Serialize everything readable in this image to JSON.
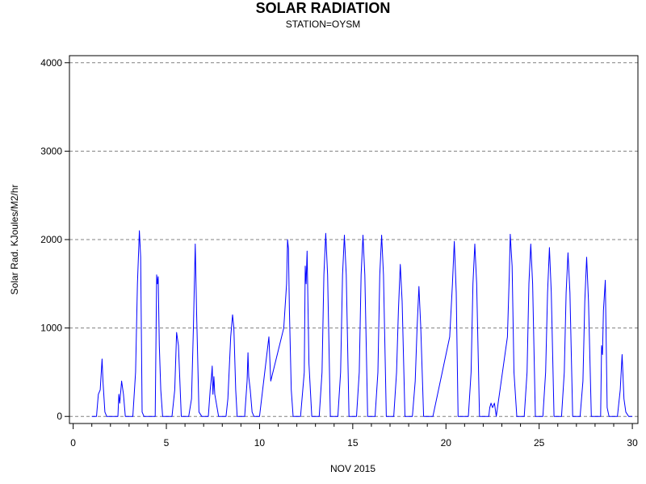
{
  "chart_data": {
    "type": "line",
    "title": "SOLAR RADIATION",
    "subtitle": "STATION=OYSM",
    "xlabel": "NOV 2015",
    "ylabel": "Solar Rad. KJoules/M2/hr",
    "xlim": [
      -0.2,
      30.3
    ],
    "ylim": [
      -80,
      4080
    ],
    "xticks": [
      0,
      5,
      10,
      15,
      20,
      25,
      30
    ],
    "yticks": [
      0,
      1000,
      2000,
      3000,
      4000
    ],
    "grid": "horizontal dashed",
    "series": [
      {
        "color": "#0000ff",
        "x": [
          1.0,
          1.25,
          1.35,
          1.45,
          1.55,
          1.6,
          1.7,
          1.8,
          2.4,
          2.45,
          2.5,
          2.6,
          2.7,
          2.8,
          3.2,
          3.35,
          3.45,
          3.55,
          3.62,
          3.7,
          3.8,
          4.4,
          4.48,
          4.52,
          4.56,
          4.62,
          4.7,
          4.8,
          5.0,
          5.3,
          5.45,
          5.55,
          5.65,
          5.8,
          6.2,
          6.35,
          6.45,
          6.55,
          6.62,
          6.75,
          6.9,
          7.25,
          7.35,
          7.42,
          7.46,
          7.5,
          7.55,
          7.6,
          7.8,
          8.2,
          8.3,
          8.45,
          8.55,
          8.62,
          8.72,
          8.8,
          9.2,
          9.33,
          9.38,
          9.42,
          9.5,
          9.6,
          9.7,
          10.0,
          10.5,
          10.6,
          11.3,
          11.45,
          11.5,
          11.55,
          11.6,
          11.7,
          11.8,
          12.2,
          12.4,
          12.45,
          12.5,
          12.55,
          12.65,
          12.8,
          13.2,
          13.35,
          13.45,
          13.55,
          13.65,
          13.8,
          14.2,
          14.35,
          14.45,
          14.55,
          14.65,
          14.8,
          15.2,
          15.35,
          15.45,
          15.55,
          15.65,
          15.8,
          16.2,
          16.35,
          16.45,
          16.55,
          16.65,
          16.8,
          17.2,
          17.35,
          17.45,
          17.55,
          17.65,
          17.8,
          18.2,
          18.35,
          18.45,
          18.55,
          18.65,
          18.8,
          19.3,
          20.2,
          20.35,
          20.45,
          20.55,
          20.65,
          20.8,
          21.2,
          21.35,
          21.45,
          21.55,
          21.65,
          21.8,
          22.2,
          22.3,
          22.35,
          22.42,
          22.5,
          22.6,
          22.7,
          23.3,
          23.4,
          23.45,
          23.55,
          23.65,
          23.8,
          24.2,
          24.35,
          24.45,
          24.55,
          24.65,
          24.8,
          25.2,
          25.35,
          25.45,
          25.55,
          25.65,
          25.8,
          26.2,
          26.35,
          26.45,
          26.55,
          26.65,
          26.8,
          27.2,
          27.35,
          27.45,
          27.55,
          27.65,
          27.8,
          28.2,
          28.3,
          28.35,
          28.4,
          28.45,
          28.55,
          28.65,
          28.75,
          29.2,
          29.35,
          29.45,
          29.55,
          29.65,
          29.8,
          30.0
        ],
        "values": [
          0,
          0,
          250,
          300,
          650,
          400,
          50,
          0,
          0,
          250,
          150,
          400,
          250,
          0,
          0,
          500,
          1500,
          2100,
          1800,
          50,
          0,
          0,
          1600,
          1500,
          1580,
          800,
          300,
          0,
          0,
          0,
          300,
          950,
          800,
          0,
          0,
          200,
          1000,
          1950,
          1200,
          50,
          0,
          0,
          300,
          450,
          570,
          250,
          450,
          250,
          0,
          0,
          200,
          900,
          1150,
          1000,
          300,
          0,
          0,
          400,
          720,
          450,
          300,
          50,
          0,
          0,
          900,
          400,
          1000,
          1500,
          2000,
          1900,
          1200,
          300,
          0,
          0,
          500,
          1700,
          1500,
          1870,
          600,
          0,
          0,
          500,
          1600,
          2070,
          1600,
          0,
          0,
          500,
          1600,
          2050,
          1600,
          0,
          0,
          500,
          1600,
          2050,
          1600,
          0,
          0,
          500,
          1600,
          2050,
          1600,
          0,
          0,
          500,
          1200,
          1720,
          1300,
          0,
          0,
          400,
          1000,
          1470,
          1000,
          0,
          0,
          900,
          1500,
          1980,
          1400,
          0,
          0,
          0,
          500,
          1500,
          1950,
          1500,
          0,
          0,
          0,
          100,
          150,
          100,
          150,
          0,
          900,
          1600,
          2060,
          1700,
          500,
          0,
          0,
          500,
          1500,
          1950,
          1500,
          0,
          0,
          500,
          1400,
          1910,
          1400,
          0,
          0,
          500,
          1400,
          1850,
          1400,
          0,
          0,
          400,
          1300,
          1800,
          1300,
          0,
          0,
          0,
          800,
          700,
          1200,
          1540,
          100,
          0,
          0,
          300,
          700,
          200,
          50,
          0,
          0
        ]
      }
    ]
  }
}
